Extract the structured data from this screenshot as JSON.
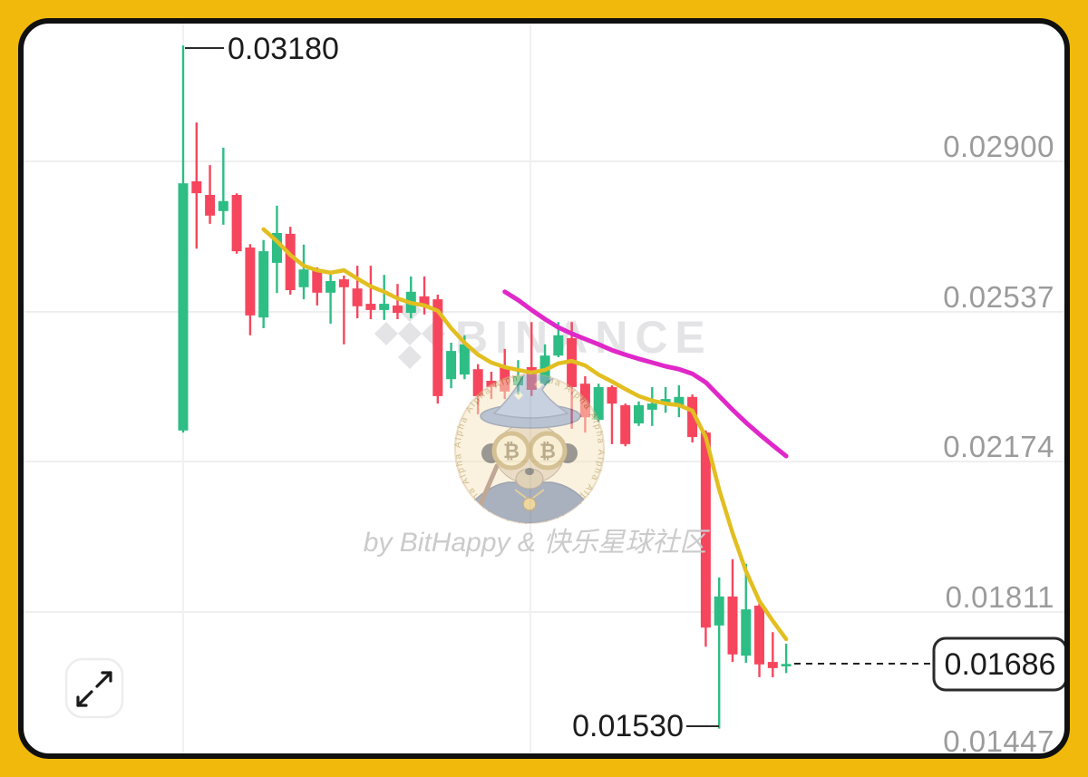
{
  "frame": {
    "background_color": "#F0B90B",
    "panel_border_color": "#101010",
    "panel_background": "#FFFFFF"
  },
  "axis": {
    "side": "right",
    "ticks": [
      {
        "label": "0.02900",
        "price": 0.029
      },
      {
        "label": "0.02537",
        "price": 0.02537
      },
      {
        "label": "0.02174",
        "price": 0.02174
      },
      {
        "label": "0.01811",
        "price": 0.01811
      },
      {
        "label": "0.01447",
        "price": 0.01447
      }
    ]
  },
  "callouts": {
    "high": {
      "label": "0.03180",
      "price": 0.0318
    },
    "low": {
      "label": "0.01530",
      "price": 0.0153
    },
    "last_price": {
      "label": "0.01686",
      "price": 0.01686
    }
  },
  "watermarks": {
    "binance": {
      "text": "BINANCE",
      "logo": "binance-diamond-icon",
      "color": "#E4E4E7"
    },
    "attribution": {
      "text": "by BitHappy & 快乐星球社区"
    },
    "wizard": {
      "description": "pug-wizard-coin-watermark",
      "goggle_symbol": "₿",
      "ring_text": "Alpha Alpha Alpha Alpha Alpha Alpha Alpha Alpha Alpha Alpha Alpha Alpha Alpha Alpha Alpha Alpha"
    }
  },
  "controls": {
    "expand_button": {
      "icon": "expand-arrows-icon"
    }
  },
  "chart_data": {
    "type": "candlestick",
    "up_color": "#2EBD85",
    "down_color": "#F6465D",
    "grid": true,
    "y_axis_ticks": [
      0.029,
      0.02537,
      0.02174,
      0.01811,
      0.01447
    ],
    "high_annotation": {
      "price": 0.0318,
      "candle_index": 0
    },
    "low_annotation": {
      "price": 0.0153,
      "candle_index": 40
    },
    "last_price": 0.01686,
    "candles_ohlc": [
      [
        0.0225,
        0.0318,
        0.02245,
        0.02847
      ],
      [
        0.02852,
        0.02994,
        0.02689,
        0.02823
      ],
      [
        0.02819,
        0.02891,
        0.02749,
        0.02769
      ],
      [
        0.0278,
        0.02933,
        0.02747,
        0.02804
      ],
      [
        0.02819,
        0.02823,
        0.02677,
        0.02683
      ],
      [
        0.02692,
        0.027,
        0.0248,
        0.02528
      ],
      [
        0.02523,
        0.0271,
        0.02497,
        0.02683
      ],
      [
        0.02655,
        0.02793,
        0.02582,
        0.02727
      ],
      [
        0.02725,
        0.02742,
        0.02578,
        0.02589
      ],
      [
        0.02596,
        0.02699,
        0.02567,
        0.02639
      ],
      [
        0.02637,
        0.02644,
        0.02552,
        0.02583
      ],
      [
        0.02583,
        0.02633,
        0.02508,
        0.02611
      ],
      [
        0.02615,
        0.02624,
        0.02458,
        0.02596
      ],
      [
        0.02593,
        0.02648,
        0.02521,
        0.0255
      ],
      [
        0.02556,
        0.02648,
        0.02519,
        0.02541
      ],
      [
        0.02541,
        0.02626,
        0.02517,
        0.02556
      ],
      [
        0.02552,
        0.02604,
        0.02519,
        0.02534
      ],
      [
        0.02534,
        0.02622,
        0.02521,
        0.02585
      ],
      [
        0.02574,
        0.02622,
        0.0253,
        0.02552
      ],
      [
        0.02567,
        0.02578,
        0.02315,
        0.02333
      ],
      [
        0.02374,
        0.02462,
        0.02352,
        0.02442
      ],
      [
        0.02385,
        0.0248,
        0.02374,
        0.02458
      ],
      [
        0.02398,
        0.0241,
        0.02289,
        0.02333
      ],
      [
        0.0237,
        0.02392,
        0.02326,
        0.02355
      ],
      [
        0.02403,
        0.02447,
        0.02326,
        0.02344
      ],
      [
        0.02359,
        0.0242,
        0.02337,
        0.02381
      ],
      [
        0.02403,
        0.02512,
        0.02333,
        0.02348
      ],
      [
        0.02363,
        0.02458,
        0.02359,
        0.02431
      ],
      [
        0.02431,
        0.02512,
        0.02427,
        0.0248
      ],
      [
        0.02473,
        0.02512,
        0.02254,
        0.02355
      ],
      [
        0.02363,
        0.02381,
        0.02245,
        0.02282
      ],
      [
        0.02276,
        0.02363,
        0.0227,
        0.02355
      ],
      [
        0.02355,
        0.02359,
        0.02217,
        0.02315
      ],
      [
        0.02311,
        0.02315,
        0.02212,
        0.02217
      ],
      [
        0.02267,
        0.0232,
        0.02261,
        0.02311
      ],
      [
        0.023,
        0.02355,
        0.02261,
        0.02315
      ],
      [
        0.02317,
        0.02355,
        0.02293,
        0.02326
      ],
      [
        0.02311,
        0.02359,
        0.02282,
        0.02331
      ],
      [
        0.02331,
        0.02337,
        0.02221,
        0.02234
      ],
      [
        0.02245,
        0.0225,
        0.01728,
        0.01774
      ],
      [
        0.01779,
        0.01895,
        0.0153,
        0.01849
      ],
      [
        0.01849,
        0.01939,
        0.01691,
        0.01709
      ],
      [
        0.01706,
        0.01928,
        0.01689,
        0.01818
      ],
      [
        0.01827,
        0.01832,
        0.01654,
        0.01685
      ],
      [
        0.01691,
        0.01763,
        0.01654,
        0.01676
      ],
      [
        0.0168,
        0.01735,
        0.01664,
        0.01686
      ]
    ],
    "series": [
      {
        "name": "ma-fast",
        "color": "#E2BE20",
        "start_index": 6,
        "values": [
          0.02736,
          0.02707,
          0.02674,
          0.02648,
          0.02637,
          0.02631,
          0.02637,
          0.02617,
          0.02598,
          0.02585,
          0.02569,
          0.02558,
          0.02552,
          0.02539,
          0.02497,
          0.02462,
          0.02433,
          0.02414,
          0.02403,
          0.02396,
          0.0239,
          0.02396,
          0.02412,
          0.02418,
          0.02407,
          0.02385,
          0.02368,
          0.0235,
          0.02333,
          0.02322,
          0.02315,
          0.02311,
          0.02298,
          0.02234,
          0.02107,
          0.02002,
          0.0191,
          0.01838,
          0.0179,
          0.01746
        ]
      },
      {
        "name": "ma-slow",
        "color": "#E028C8",
        "start_index": 24,
        "values": [
          0.02585,
          0.02565,
          0.02541,
          0.02519,
          0.02499,
          0.02484,
          0.02471,
          0.02458,
          0.02444,
          0.02433,
          0.02423,
          0.02414,
          0.02405,
          0.02398,
          0.02387,
          0.02366,
          0.02333,
          0.023,
          0.02269,
          0.02241,
          0.02214,
          0.02188
        ]
      }
    ]
  }
}
